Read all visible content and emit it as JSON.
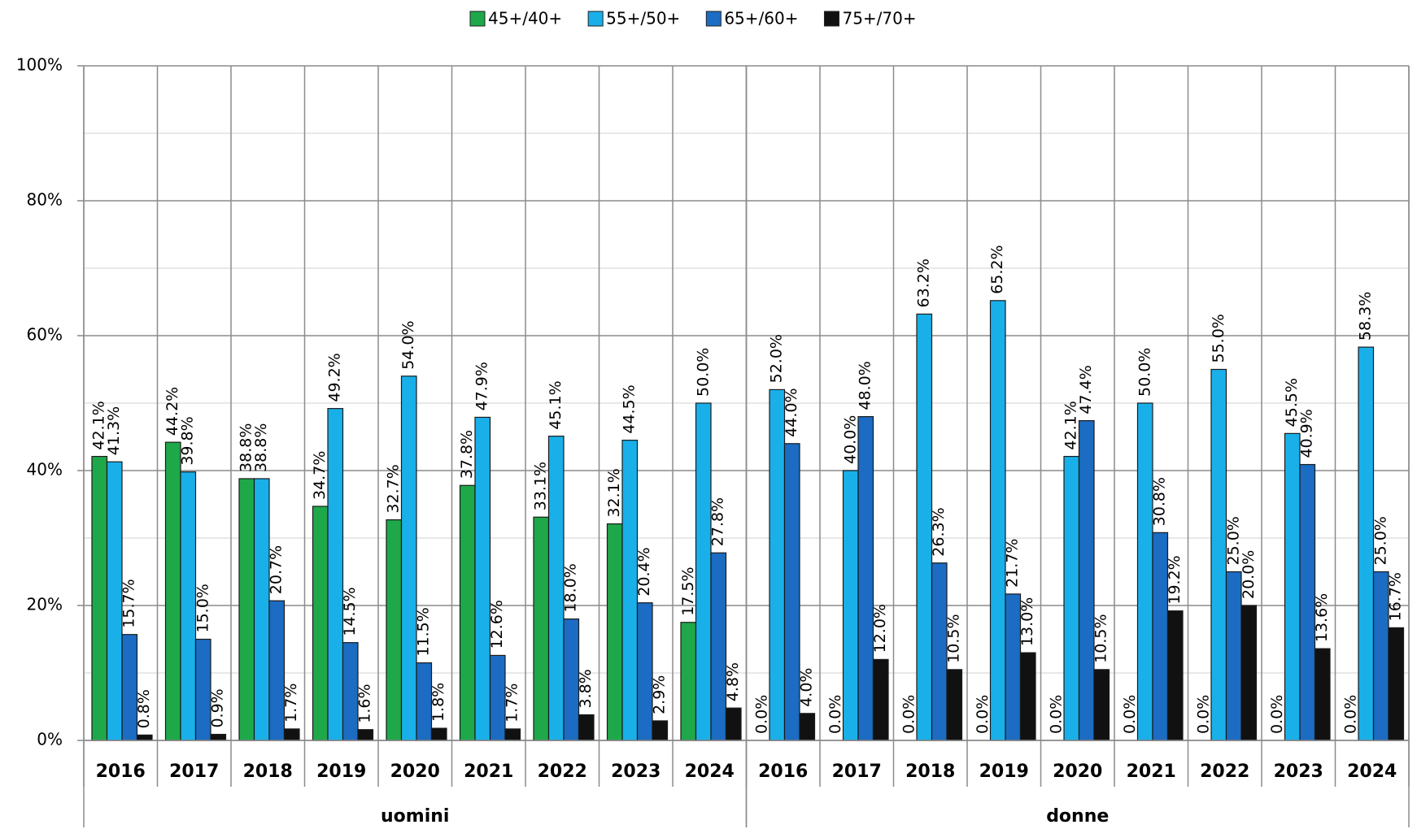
{
  "chart_data": {
    "type": "bar",
    "groups": [
      {
        "name": "uomini",
        "categories": [
          "2016",
          "2017",
          "2018",
          "2019",
          "2020",
          "2021",
          "2022",
          "2023",
          "2024"
        ]
      },
      {
        "name": "donne",
        "categories": [
          "2016",
          "2017",
          "2018",
          "2019",
          "2020",
          "2021",
          "2022",
          "2023",
          "2024"
        ]
      }
    ],
    "series": [
      {
        "name": "45+/40+",
        "color": "#1fa84a",
        "values": [
          42.1,
          44.2,
          38.8,
          34.7,
          32.7,
          37.8,
          33.1,
          32.1,
          17.5,
          0,
          0,
          0,
          0,
          0,
          0,
          0,
          0,
          0
        ],
        "value_labels": [
          "42.1%",
          "44.2%",
          "38.8%",
          "34.7%",
          "32.7%",
          "37.8%",
          "33.1%",
          "32.1%",
          "17.5%",
          "0.0%",
          "0.0%",
          "0.0%",
          "0.0%",
          "0.0%",
          "0.0%",
          "0.0%",
          "0.0%",
          "0.0%"
        ]
      },
      {
        "name": "55+/50+",
        "color": "#19b0ea",
        "values": [
          41.3,
          39.8,
          38.8,
          49.2,
          54.0,
          47.9,
          45.1,
          44.5,
          50.0,
          52.0,
          40.0,
          63.2,
          65.2,
          42.1,
          50.0,
          55.0,
          45.5,
          58.3
        ],
        "value_labels": [
          "41.3%",
          "39.8%",
          "38.8%",
          "49.2%",
          "54.0%",
          "47.9%",
          "45.1%",
          "44.5%",
          "50.0%",
          "52.0%",
          "40.0%",
          "63.2%",
          "65.2%",
          "42.1%",
          "50.0%",
          "55.0%",
          "45.5%",
          "58.3%"
        ]
      },
      {
        "name": "65+/60+",
        "color": "#1b6cc2",
        "values": [
          15.7,
          15.0,
          20.7,
          14.5,
          11.5,
          12.6,
          18.0,
          20.4,
          27.8,
          44.0,
          48.0,
          26.3,
          21.7,
          47.4,
          30.8,
          25.0,
          40.9,
          25.0
        ],
        "value_labels": [
          "15.7%",
          "15.0%",
          "20.7%",
          "14.5%",
          "11.5%",
          "12.6%",
          "18.0%",
          "20.4%",
          "27.8%",
          "44.0%",
          "48.0%",
          "26.3%",
          "21.7%",
          "47.4%",
          "30.8%",
          "25.0%",
          "40.9%",
          "25.0%"
        ]
      },
      {
        "name": "75+/70+",
        "color": "#111111",
        "values": [
          0.8,
          0.9,
          1.7,
          1.6,
          1.8,
          1.7,
          3.8,
          2.9,
          4.8,
          4.0,
          12.0,
          10.5,
          13.0,
          10.5,
          19.2,
          20.0,
          13.6,
          16.7
        ],
        "value_labels": [
          "0.8%",
          "0.9%",
          "1.7%",
          "1.6%",
          "1.8%",
          "1.7%",
          "3.8%",
          "2.9%",
          "4.8%",
          "4.0%",
          "12.0%",
          "10.5%",
          "13.0%",
          "10.5%",
          "19.2%",
          "20.0%",
          "13.6%",
          "16.7%"
        ]
      }
    ],
    "ylim": [
      0,
      100
    ],
    "yticks": [
      {
        "value": 0,
        "label": "0%"
      },
      {
        "value": 20,
        "label": "20%"
      },
      {
        "value": 40,
        "label": "40%"
      },
      {
        "value": 60,
        "label": "60%"
      },
      {
        "value": 80,
        "label": "80%"
      },
      {
        "value": 100,
        "label": "100%"
      }
    ],
    "minor_yticks": [
      10,
      30,
      50,
      70,
      90
    ],
    "grid": true,
    "legend": "top"
  }
}
